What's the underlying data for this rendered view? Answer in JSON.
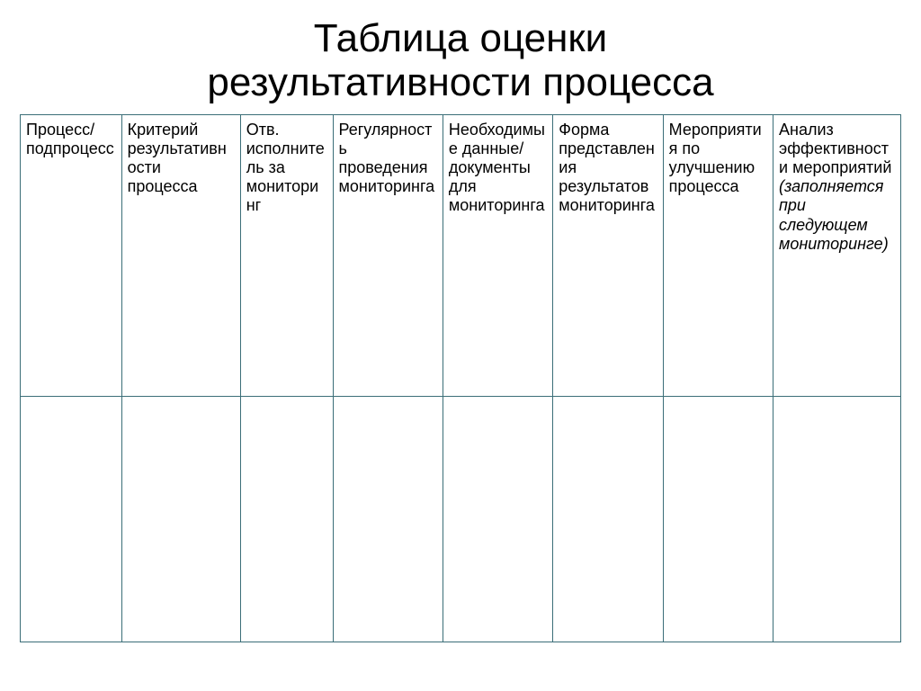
{
  "title_line1": "Таблица оценки",
  "title_line2": "результативности процесса",
  "table": {
    "border_color": "#3b6e78",
    "background_color": "#ffffff",
    "header_fontsize": 18,
    "columns": [
      {
        "widthPct": 11.5,
        "text": "Процесс/подпроцесс"
      },
      {
        "widthPct": 13.5,
        "text": "Критерий результативности процесса"
      },
      {
        "widthPct": 10.5,
        "text": "Отв. исполнитель за мониторинг"
      },
      {
        "widthPct": 12.5,
        "text": "Регулярность проведения мониторинга"
      },
      {
        "widthPct": 12.5,
        "text": "Необходимые данные/документы для мониторинга"
      },
      {
        "widthPct": 12.5,
        "text": "Форма представления результатов мониторинга"
      },
      {
        "widthPct": 12.5,
        "text": "Мероприятия по улучшению процесса"
      },
      {
        "widthPct": 14.5,
        "text": "Анализ эффективности мероприятий",
        "note": "(заполняется при следующем мониторинге)"
      }
    ],
    "body_rows": 1
  }
}
